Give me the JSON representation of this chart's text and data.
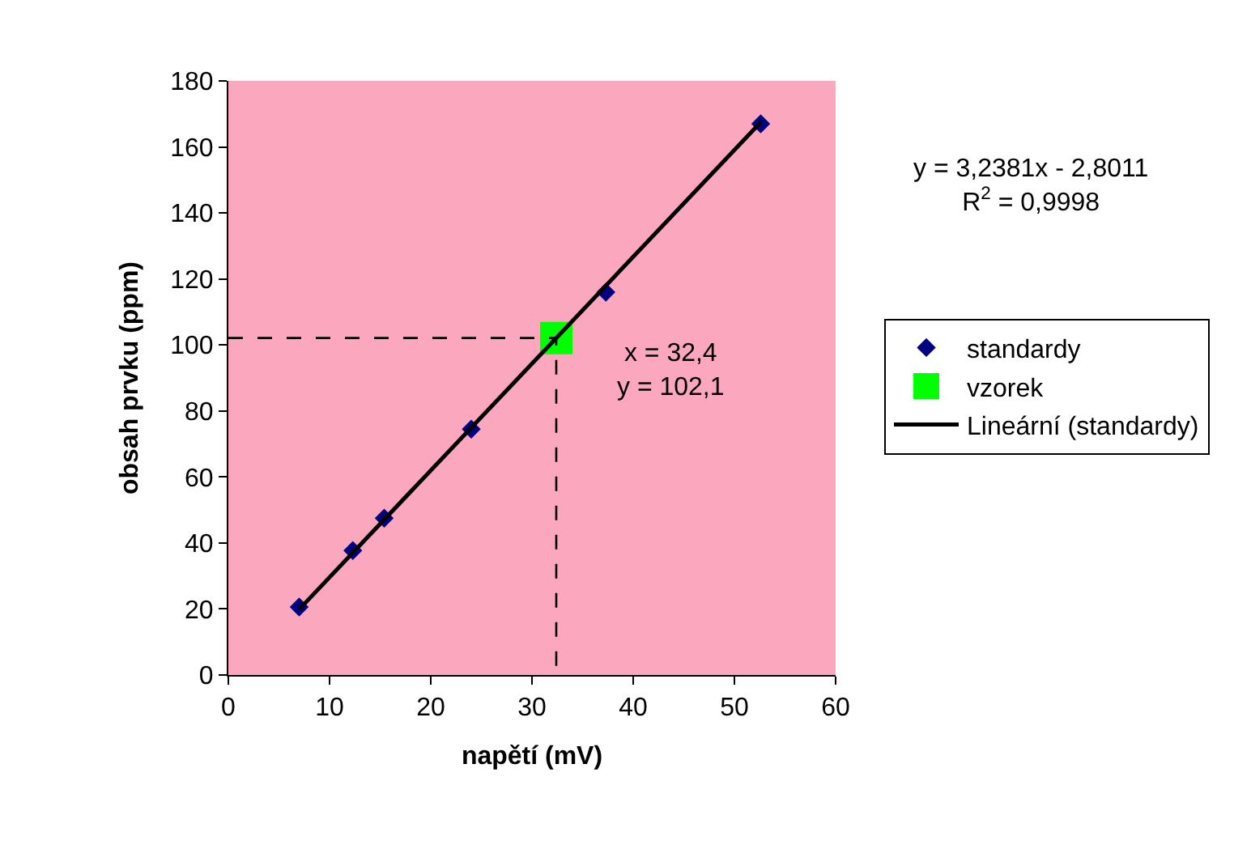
{
  "chart_data": {
    "type": "scatter",
    "xlabel": "napětí (mV)",
    "ylabel": "obsah prvku (ppm)",
    "xlim": [
      0,
      60
    ],
    "xticks": [
      0,
      10,
      20,
      30,
      40,
      50,
      60
    ],
    "ylim": [
      0,
      180
    ],
    "yticks": [
      0,
      20,
      40,
      60,
      80,
      100,
      120,
      140,
      160,
      180
    ],
    "grid": false,
    "legend": "right",
    "series": [
      {
        "name": "standardy",
        "marker": "diamond",
        "color": "#000080",
        "x": [
          7.0,
          12.3,
          15.4,
          24.0,
          37.3,
          52.6
        ],
        "values": [
          20.6,
          37.7,
          47.5,
          74.5,
          116.0,
          167.0
        ]
      },
      {
        "name": "vzorek",
        "marker": "square",
        "color": "#00ff00",
        "x": [
          32.4
        ],
        "values": [
          102.1
        ]
      },
      {
        "name": "Lineární (standardy)",
        "type": "line",
        "marker": "none",
        "line_style": "solid",
        "color": "#000000",
        "x": [
          7.0,
          52.6
        ],
        "values": [
          19.9,
          167.5
        ]
      },
      {
        "type": "line",
        "marker": "none",
        "line_style": "dashed",
        "color": "#000000",
        "x": [
          0,
          32.4,
          32.4
        ],
        "values": [
          102.1,
          102.1,
          0
        ]
      }
    ],
    "annotations": [
      "y = 3,2381x - 2,8011\nR$^{2}$ = 0,9998",
      {
        "text": "x = 32,4\ny = 102,1",
        "x": 32.4,
        "y": 102.1
      }
    ]
  }
}
